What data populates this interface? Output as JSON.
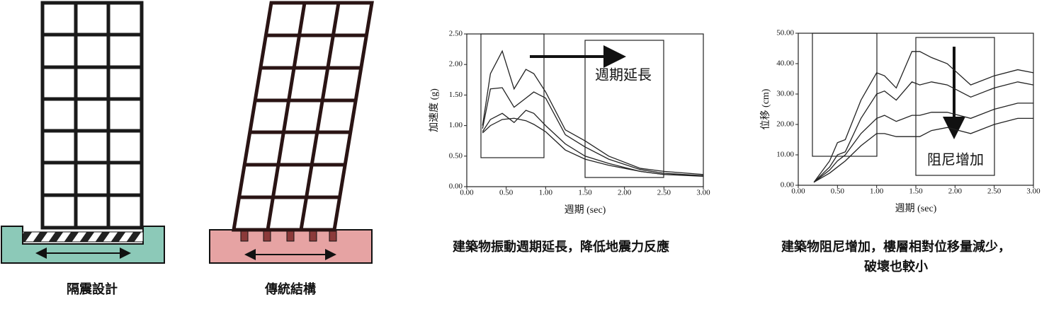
{
  "diagrams": [
    {
      "label": "隔震設計"
    },
    {
      "label": "傳統結構"
    }
  ],
  "chart_data": [
    {
      "type": "line",
      "xlabel": "週期 (sec)",
      "ylabel": "加速度 (g)",
      "annotation": "週期延長",
      "caption": [
        "建築物振動週期延長，降低地震力反應"
      ],
      "color": "#222",
      "x": [
        0.2,
        0.3,
        0.45,
        0.6,
        0.75,
        0.85,
        1.0,
        1.25,
        1.5,
        1.8,
        2.2,
        2.5,
        3.0
      ],
      "series": [
        {
          "values": [
            1.0,
            1.85,
            2.22,
            1.6,
            1.92,
            1.85,
            1.55,
            0.93,
            0.75,
            0.5,
            0.3,
            0.25,
            0.2
          ]
        },
        {
          "values": [
            0.95,
            1.6,
            1.62,
            1.3,
            1.45,
            1.55,
            1.45,
            0.85,
            0.65,
            0.45,
            0.28,
            0.22,
            0.18
          ]
        },
        {
          "values": [
            0.9,
            1.1,
            1.2,
            1.05,
            1.25,
            1.2,
            1.0,
            0.7,
            0.5,
            0.38,
            0.25,
            0.2,
            0.18
          ]
        },
        {
          "values": [
            0.88,
            1.0,
            1.1,
            1.12,
            1.08,
            1.02,
            0.9,
            0.6,
            0.45,
            0.35,
            0.25,
            0.2,
            0.17
          ]
        }
      ],
      "xlim": [
        0,
        3
      ],
      "ylim": [
        0,
        2.5
      ],
      "xticks": [
        {
          "value": 0,
          "label": "0.00"
        },
        {
          "value": 0.5,
          "label": "0.50"
        },
        {
          "value": 1,
          "label": "1.00"
        },
        {
          "value": 1.5,
          "label": "1.50"
        },
        {
          "value": 2,
          "label": "2.00"
        },
        {
          "value": 2.5,
          "label": "2.50"
        },
        {
          "value": 3,
          "label": "3.00"
        }
      ],
      "yticks": [
        {
          "value": 0,
          "label": "0.00"
        },
        {
          "value": 0.5,
          "label": "0.50"
        },
        {
          "value": 1,
          "label": "1.00"
        },
        {
          "value": 1.5,
          "label": "1.50"
        },
        {
          "value": 2,
          "label": "2.00"
        },
        {
          "value": 2.5,
          "label": "2.50"
        }
      ]
    },
    {
      "type": "line",
      "xlabel": "週期 (sec)",
      "ylabel": "位移 (cm)",
      "annotation": "阻尼增加",
      "caption": [
        "建築物阻尼增加，樓層相對位移量減少，",
        "破壞也較小"
      ],
      "color": "#222",
      "x": [
        0.2,
        0.4,
        0.5,
        0.6,
        0.8,
        1.0,
        1.1,
        1.25,
        1.45,
        1.55,
        1.7,
        1.9,
        2.2,
        2.5,
        2.8,
        3.0
      ],
      "series": [
        {
          "values": [
            1,
            8,
            14,
            15,
            28,
            37,
            36,
            32,
            44,
            44,
            42,
            40,
            33,
            36,
            38,
            37
          ]
        },
        {
          "values": [
            1,
            6,
            10,
            11,
            22,
            30,
            31,
            28,
            34,
            33,
            34,
            33,
            29,
            32,
            34,
            33
          ]
        },
        {
          "values": [
            1,
            5,
            8,
            10,
            17,
            22,
            23,
            21,
            23,
            23,
            24,
            24,
            22,
            25,
            27,
            27
          ]
        },
        {
          "values": [
            1,
            4,
            6,
            8,
            13,
            17,
            17,
            16,
            16,
            16,
            18,
            19,
            17,
            20,
            22,
            22
          ]
        }
      ],
      "xlim": [
        0,
        3
      ],
      "ylim": [
        0,
        50
      ],
      "xticks": [
        {
          "value": 0,
          "label": "0.00"
        },
        {
          "value": 0.5,
          "label": "0.50"
        },
        {
          "value": 1,
          "label": "1.00"
        },
        {
          "value": 1.5,
          "label": "1.50"
        },
        {
          "value": 2,
          "label": "2.00"
        },
        {
          "value": 2.5,
          "label": "2.50"
        },
        {
          "value": 3,
          "label": "3.00"
        }
      ],
      "yticks": [
        {
          "value": 0,
          "label": "0.00"
        },
        {
          "value": 10,
          "label": "10.00"
        },
        {
          "value": 20,
          "label": "20.00"
        },
        {
          "value": 30,
          "label": "30.00"
        },
        {
          "value": 40,
          "label": "40.00"
        },
        {
          "value": 50,
          "label": "50.00"
        }
      ]
    }
  ]
}
